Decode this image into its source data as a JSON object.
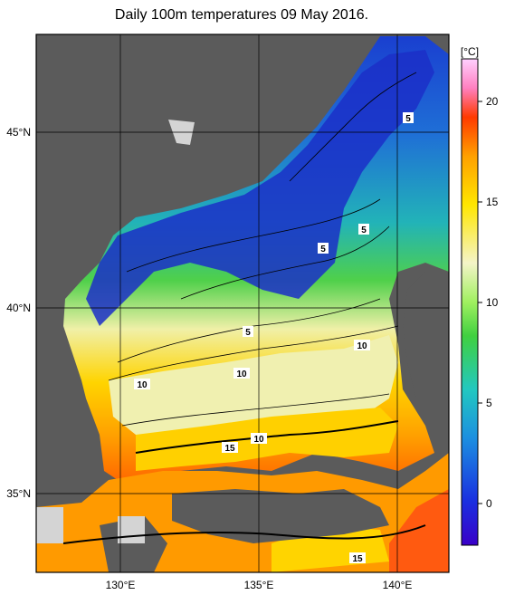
{
  "title": "Daily 100m temperatures 09 May 2016.",
  "colorbar": {
    "unit": "[°C]",
    "ticks": [
      "20",
      "15",
      "10",
      "5",
      "0"
    ]
  },
  "axes": {
    "lat_labels": [
      "45°N",
      "40°N",
      "35°N"
    ],
    "lon_labels": [
      "130°E",
      "135°E",
      "140°E"
    ]
  },
  "contour_labels": [
    {
      "text": "5"
    },
    {
      "text": "5"
    },
    {
      "text": "5"
    },
    {
      "text": "5"
    },
    {
      "text": "10"
    },
    {
      "text": "10"
    },
    {
      "text": "10"
    },
    {
      "text": "10"
    },
    {
      "text": "15"
    },
    {
      "text": "15"
    }
  ],
  "colors": {
    "land": "#5b5b5b",
    "nodata": "#d4d4d4",
    "frame": "#000000"
  }
}
